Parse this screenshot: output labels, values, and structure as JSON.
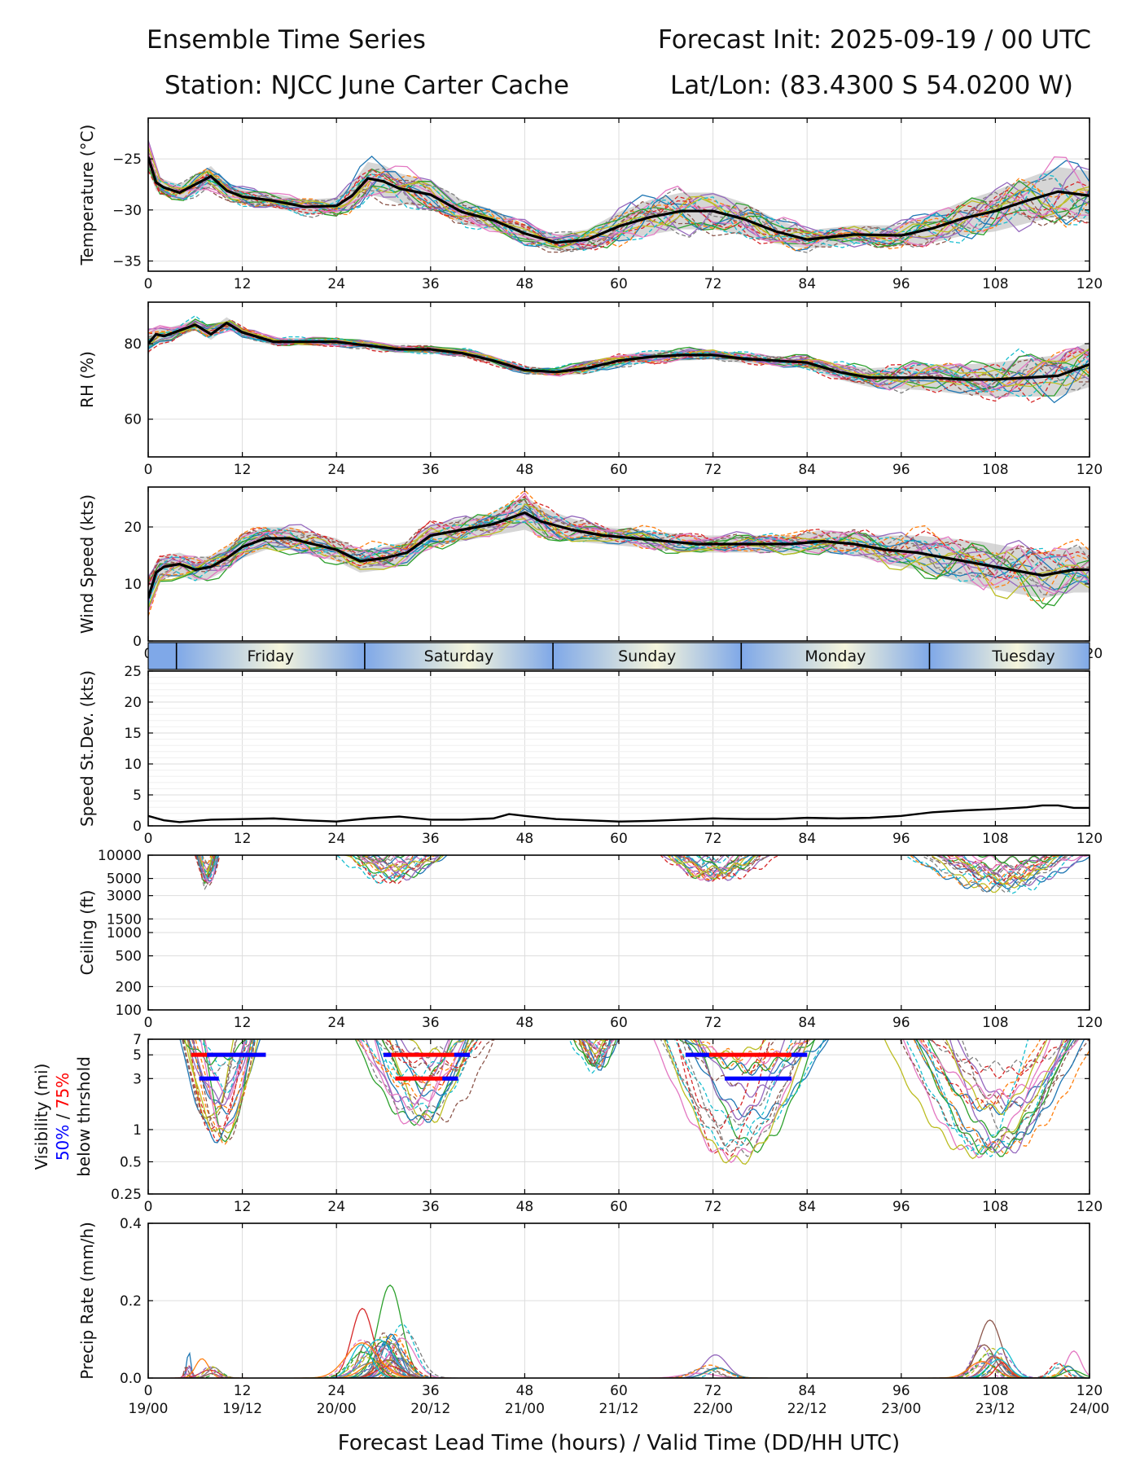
{
  "header": {
    "title_left": "Ensemble Time Series",
    "title_right": "Forecast Init: 2025-09-19 / 00 UTC",
    "station": "Station: NJCC June Carter Cache",
    "latlon": "Lat/Lon: (83.4300 S 54.0200 W)"
  },
  "footer": {
    "xlabel": "Forecast Lead Time (hours) / Valid Time (DD/HH UTC)"
  },
  "colors": {
    "mean_line": "#000000",
    "spread_band": "#c8c8c8",
    "grid": "#dddddd",
    "vis_50": "#0000ff",
    "vis_75": "#ff0000",
    "day_band_edge": "#7fa8e8",
    "day_band_mid": "#f5f5dc",
    "members": [
      "#1f77b4",
      "#ff7f0e",
      "#2ca02c",
      "#d62728",
      "#9467bd",
      "#8c564b",
      "#e377c2",
      "#7f7f7f",
      "#bcbd22",
      "#17becf"
    ]
  },
  "chart_data": [
    {
      "id": "temperature",
      "type": "line",
      "title": "",
      "xlabel": "",
      "ylabel": "Temperature (°C)",
      "xlim": [
        0,
        120
      ],
      "ylim": [
        -36,
        -21
      ],
      "yticks": [
        -35,
        -30,
        -25
      ],
      "xticks": [
        0,
        12,
        24,
        36,
        48,
        60,
        72,
        84,
        96,
        108,
        120
      ],
      "x": [
        0,
        1,
        2,
        4,
        6,
        8,
        10,
        12,
        16,
        20,
        24,
        26,
        28,
        30,
        32,
        36,
        40,
        44,
        48,
        52,
        56,
        60,
        64,
        68,
        72,
        76,
        80,
        84,
        90,
        96,
        100,
        104,
        108,
        112,
        116,
        120
      ],
      "ensemble_mean": [
        -24.8,
        -27.3,
        -27.8,
        -28.3,
        -27.5,
        -26.7,
        -28.1,
        -28.7,
        -29.1,
        -29.7,
        -29.6,
        -28.6,
        -26.9,
        -27.2,
        -27.9,
        -28.5,
        -30.2,
        -31.0,
        -32.3,
        -33.2,
        -32.9,
        -31.6,
        -30.7,
        -30.1,
        -30.1,
        -30.9,
        -32.1,
        -32.9,
        -32.4,
        -32.5,
        -31.8,
        -30.8,
        -30.1,
        -29.1,
        -28.2,
        -28.6
      ],
      "spread_half_width": [
        1.2,
        0.8,
        0.8,
        0.8,
        0.9,
        1.0,
        0.8,
        0.7,
        0.7,
        0.7,
        0.8,
        1.2,
        1.6,
        1.6,
        1.5,
        1.3,
        1.2,
        1.0,
        0.9,
        0.8,
        1.0,
        1.4,
        1.7,
        1.8,
        1.8,
        1.6,
        1.2,
        0.9,
        0.9,
        1.0,
        1.4,
        1.7,
        2.0,
        2.2,
        2.4,
        2.4
      ],
      "members_count": 20
    },
    {
      "id": "rh",
      "type": "line",
      "title": "",
      "xlabel": "",
      "ylabel": "RH (%)",
      "xlim": [
        0,
        120
      ],
      "ylim": [
        50,
        91
      ],
      "yticks": [
        60,
        80
      ],
      "xticks": [
        0,
        12,
        24,
        36,
        48,
        60,
        72,
        84,
        96,
        108,
        120
      ],
      "x": [
        0,
        1,
        2,
        4,
        6,
        8,
        10,
        12,
        16,
        20,
        24,
        28,
        32,
        36,
        40,
        44,
        48,
        52,
        56,
        60,
        64,
        68,
        72,
        76,
        80,
        84,
        88,
        92,
        96,
        100,
        104,
        108,
        112,
        116,
        120
      ],
      "ensemble_mean": [
        80,
        82.5,
        82,
        83.5,
        85,
        82.5,
        85.5,
        83,
        80.5,
        80.5,
        80.5,
        79.5,
        78.5,
        78.5,
        77.5,
        75.5,
        73,
        72.5,
        73.5,
        75.5,
        76.5,
        77,
        77,
        76,
        75.5,
        75,
        72.5,
        71,
        71,
        71,
        70.5,
        70.5,
        71,
        71.5,
        74.5
      ],
      "spread_half_width": [
        3,
        2,
        2,
        1.5,
        1.5,
        1.5,
        1.5,
        1.2,
        1,
        1,
        1,
        1,
        1,
        1,
        1,
        1,
        1,
        1,
        1.5,
        1.5,
        1.5,
        1.5,
        1.2,
        1.2,
        1.2,
        1.5,
        2,
        2.5,
        3,
        3.5,
        4,
        4.5,
        5,
        5.5,
        6
      ],
      "members_count": 20
    },
    {
      "id": "wind_speed",
      "type": "line",
      "title": "",
      "xlabel": "",
      "ylabel": "Wind Speed (kts)",
      "xlim": [
        0,
        120
      ],
      "ylim": [
        0,
        27
      ],
      "yticks": [
        0,
        10,
        20
      ],
      "xticks": [
        0,
        12,
        24,
        36,
        48,
        60,
        72,
        84,
        96,
        108,
        120
      ],
      "x": [
        0,
        1,
        2,
        4,
        6,
        8,
        10,
        12,
        15,
        18,
        21,
        24,
        27,
        30,
        33,
        36,
        40,
        44,
        46,
        48,
        50,
        54,
        58,
        62,
        66,
        70,
        74,
        78,
        82,
        86,
        90,
        94,
        98,
        102,
        106,
        110,
        114,
        118,
        120
      ],
      "ensemble_mean": [
        7.5,
        12,
        13,
        13.5,
        12.5,
        13,
        14.5,
        16.5,
        18,
        18,
        17,
        16,
        14,
        14.5,
        15.5,
        18.5,
        19.5,
        20.5,
        21.5,
        22.5,
        21,
        19.5,
        18.5,
        18,
        17.5,
        17,
        17,
        17,
        17,
        17.5,
        17,
        16,
        15.5,
        14.5,
        13.5,
        12.5,
        11.5,
        12.5,
        12.5
      ],
      "spread_half_width": [
        3,
        2,
        2,
        2,
        2,
        2,
        2,
        2,
        2,
        2,
        2,
        2,
        2,
        2,
        2,
        2,
        2,
        2,
        2.5,
        3,
        2.5,
        2,
        1.5,
        1.5,
        1.5,
        1.5,
        1.5,
        1.5,
        1.5,
        2,
        2,
        2.5,
        3,
        3.5,
        4,
        4,
        4,
        4,
        4
      ],
      "members_count": 20
    },
    {
      "id": "day_bands",
      "type": "table",
      "labels": [
        "Friday",
        "Saturday",
        "Sunday",
        "Monday",
        "Tuesday"
      ],
      "midnight_marks_hours": [
        3.6,
        27.6,
        51.6,
        75.6,
        99.6
      ]
    },
    {
      "id": "speed_stdev",
      "type": "line",
      "title": "",
      "xlabel": "",
      "ylabel": "Speed St.Dev. (kts)",
      "xlim": [
        0,
        120
      ],
      "ylim": [
        0,
        25
      ],
      "yticks": [
        0,
        5,
        10,
        15,
        20,
        25
      ],
      "xticks": [
        0,
        12,
        24,
        36,
        48,
        60,
        72,
        84,
        96,
        108,
        120
      ],
      "x": [
        0,
        2,
        4,
        8,
        12,
        16,
        20,
        24,
        28,
        32,
        36,
        40,
        44,
        46,
        48,
        52,
        56,
        60,
        64,
        68,
        72,
        76,
        80,
        84,
        88,
        92,
        96,
        100,
        104,
        108,
        112,
        114,
        116,
        118,
        120
      ],
      "values": [
        1.6,
        0.9,
        0.6,
        1.0,
        1.1,
        1.2,
        0.9,
        0.7,
        1.2,
        1.5,
        1.0,
        1.0,
        1.2,
        1.9,
        1.6,
        1.1,
        0.9,
        0.7,
        0.8,
        1.0,
        1.2,
        1.1,
        1.1,
        1.3,
        1.2,
        1.3,
        1.6,
        2.2,
        2.5,
        2.7,
        3.0,
        3.3,
        3.3,
        2.9,
        2.9
      ],
      "members_count": 0
    },
    {
      "id": "ceiling",
      "type": "line",
      "title": "",
      "xlabel": "",
      "ylabel": "Ceiling (ft)",
      "xlim": [
        0,
        120
      ],
      "ylim": [
        100,
        10000
      ],
      "yscale": "log",
      "yticks": [
        100,
        200,
        500,
        1000,
        1500,
        3000,
        5000,
        10000
      ],
      "xticks": [
        0,
        12,
        24,
        36,
        48,
        60,
        72,
        84,
        96,
        108,
        120
      ],
      "episodes": [
        {
          "start": 6,
          "end": 9,
          "min_ft": 4000
        },
        {
          "start": 24,
          "end": 38,
          "min_ft": 4500
        },
        {
          "start": 65,
          "end": 80,
          "min_ft": 5000
        },
        {
          "start": 98,
          "end": 120,
          "min_ft": 3500
        }
      ],
      "members_count": 20
    },
    {
      "id": "visibility",
      "type": "line",
      "title": "",
      "xlabel": "",
      "ylabel": "Visibility (mi)",
      "ylabel_50": "50%",
      "ylabel_sep": "/",
      "ylabel_75": "75%",
      "ylabel_2": "below thrshold",
      "xlim": [
        0,
        120
      ],
      "ylim": [
        0.25,
        7
      ],
      "yscale": "log",
      "yticks": [
        0.25,
        0.5,
        1,
        3,
        5,
        7
      ],
      "ytick_labels": [
        "0.25",
        "0.5",
        "1",
        "3",
        "5",
        "7"
      ],
      "xticks": [
        0,
        12,
        24,
        36,
        48,
        60,
        72,
        84,
        96,
        108,
        120
      ],
      "episodes": [
        {
          "start": 4,
          "end": 14,
          "min_mi": 0.8
        },
        {
          "start": 27,
          "end": 43,
          "min_mi": 0.9
        },
        {
          "start": 54,
          "end": 60,
          "min_mi": 3.5
        },
        {
          "start": 65,
          "end": 86,
          "min_mi": 0.5
        },
        {
          "start": 96,
          "end": 120,
          "min_mi": 0.6
        }
      ],
      "threshold_bars": [
        {
          "level": 5,
          "prob": 75,
          "start": 5.5,
          "end": 15,
          "color": "red"
        },
        {
          "level": 5,
          "prob": 50,
          "start": 7.5,
          "end": 15,
          "color": "blue"
        },
        {
          "level": 3,
          "prob": 50,
          "start": 6.5,
          "end": 9,
          "color": "blue"
        },
        {
          "level": 5,
          "prob": 75,
          "start": 30,
          "end": 41,
          "color": "red"
        },
        {
          "level": 5,
          "prob": 50,
          "start": 30,
          "end": 31,
          "color": "blue"
        },
        {
          "level": 5,
          "prob": 50,
          "start": 39,
          "end": 41,
          "color": "blue"
        },
        {
          "level": 3,
          "prob": 75,
          "start": 31.5,
          "end": 39.5,
          "color": "red"
        },
        {
          "level": 3,
          "prob": 50,
          "start": 37.5,
          "end": 39.5,
          "color": "blue"
        },
        {
          "level": 5,
          "prob": 75,
          "start": 68.5,
          "end": 84,
          "color": "red"
        },
        {
          "level": 5,
          "prob": 50,
          "start": 68.5,
          "end": 71.5,
          "color": "blue"
        },
        {
          "level": 5,
          "prob": 50,
          "start": 82,
          "end": 84,
          "color": "blue"
        },
        {
          "level": 3,
          "prob": 50,
          "start": 73.5,
          "end": 82,
          "color": "blue"
        }
      ],
      "members_count": 20
    },
    {
      "id": "precip",
      "type": "line",
      "title": "",
      "xlabel": "Forecast Lead Time (hours) / Valid Time (DD/HH UTC)",
      "ylabel": "Precip Rate (mm/h)",
      "xlim": [
        0,
        120
      ],
      "ylim": [
        0,
        0.4
      ],
      "yticks": [
        0.0,
        0.2,
        0.4
      ],
      "ytick_labels": [
        "0.0",
        "0.2",
        "0.4"
      ],
      "xticks": [
        0,
        12,
        24,
        36,
        48,
        60,
        72,
        84,
        96,
        108,
        120
      ],
      "valid_time_labels": [
        "19/00",
        "19/12",
        "20/00",
        "20/12",
        "21/00",
        "21/12",
        "22/00",
        "22/12",
        "23/00",
        "23/12",
        "24/00"
      ],
      "episodes": [
        {
          "center": 5.2,
          "width": 0.5,
          "peak": 0.07
        },
        {
          "center": 8,
          "width": 1.5,
          "peak": 0.05
        },
        {
          "center": 31.5,
          "width": 2.0,
          "peak": 0.24
        },
        {
          "center": 29,
          "width": 2.5,
          "peak": 0.18
        },
        {
          "center": 72,
          "width": 2.5,
          "peak": 0.06
        },
        {
          "center": 107.5,
          "width": 2.0,
          "peak": 0.15
        },
        {
          "center": 117,
          "width": 1.5,
          "peak": 0.07
        }
      ],
      "members_count": 20
    }
  ]
}
